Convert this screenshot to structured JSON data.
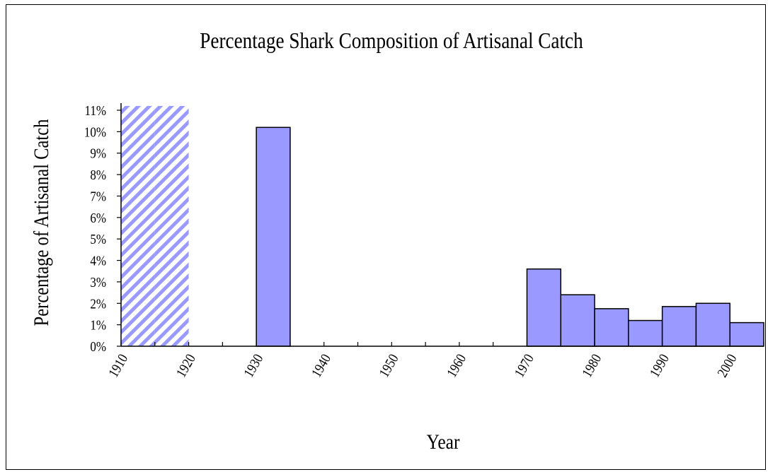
{
  "chart_data": {
    "type": "bar",
    "title": "Percentage Shark Composition of Artisanal Catch",
    "xlabel": "Year",
    "ylabel": "Percentage of Artisanal Catch",
    "x_ticks": [
      "1910",
      "1920",
      "1930",
      "1940",
      "1950",
      "1960",
      "1970",
      "1980",
      "1990",
      "2000"
    ],
    "y_ticks": [
      "0%",
      "1%",
      "2%",
      "3%",
      "4%",
      "5%",
      "6%",
      "7%",
      "8%",
      "9%",
      "10%",
      "11%"
    ],
    "xlim": [
      1910,
      2005
    ],
    "ylim": [
      0,
      11
    ],
    "bar_width_years": 5,
    "grid": false,
    "bars": [
      {
        "start": 1910,
        "value": 11.2,
        "style": "hatched"
      },
      {
        "start": 1915,
        "value": 11.2,
        "style": "hatched"
      },
      {
        "start": 1930,
        "value": 10.2,
        "style": "solid"
      },
      {
        "start": 1970,
        "value": 3.6,
        "style": "solid"
      },
      {
        "start": 1975,
        "value": 2.4,
        "style": "solid"
      },
      {
        "start": 1980,
        "value": 1.75,
        "style": "solid"
      },
      {
        "start": 1985,
        "value": 1.2,
        "style": "solid"
      },
      {
        "start": 1990,
        "value": 1.85,
        "style": "solid"
      },
      {
        "start": 1995,
        "value": 2.0,
        "style": "solid"
      },
      {
        "start": 2000,
        "value": 1.1,
        "style": "solid"
      }
    ],
    "colors": {
      "bar_fill": "#9999ff",
      "hatch_stroke": "#9999ff",
      "outline": "#000000"
    }
  }
}
